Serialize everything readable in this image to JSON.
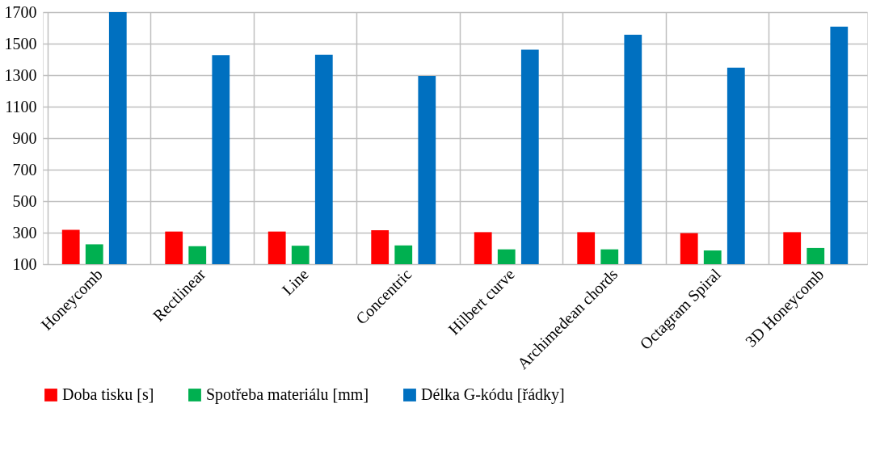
{
  "chart_data": {
    "type": "bar",
    "categories": [
      "Honeycomb",
      "Rectlinear",
      "Line",
      "Concentric",
      "Hilbert curve",
      "Archimedean chords",
      "Octagram Spiral",
      "3D Honeycomb"
    ],
    "series": [
      {
        "name": "Doba tisku [s]",
        "color": "#ff0000",
        "values": [
          318,
          307,
          307,
          316,
          303,
          303,
          297,
          303
        ]
      },
      {
        "name": "Spotřeba materiálu [mm]",
        "color": "#00b050",
        "values": [
          226,
          214,
          217,
          219,
          194,
          194,
          187,
          203
        ]
      },
      {
        "name": "Délka G-kódu [řádky]",
        "color": "#0070c0",
        "values": [
          1700,
          1427,
          1429,
          1295,
          1462,
          1556,
          1348,
          1608
        ]
      }
    ],
    "ylim": [
      100,
      1700
    ],
    "yticks": [
      100,
      300,
      500,
      700,
      900,
      1100,
      1300,
      1500,
      1700
    ],
    "grid": true,
    "legend": "bottom"
  }
}
